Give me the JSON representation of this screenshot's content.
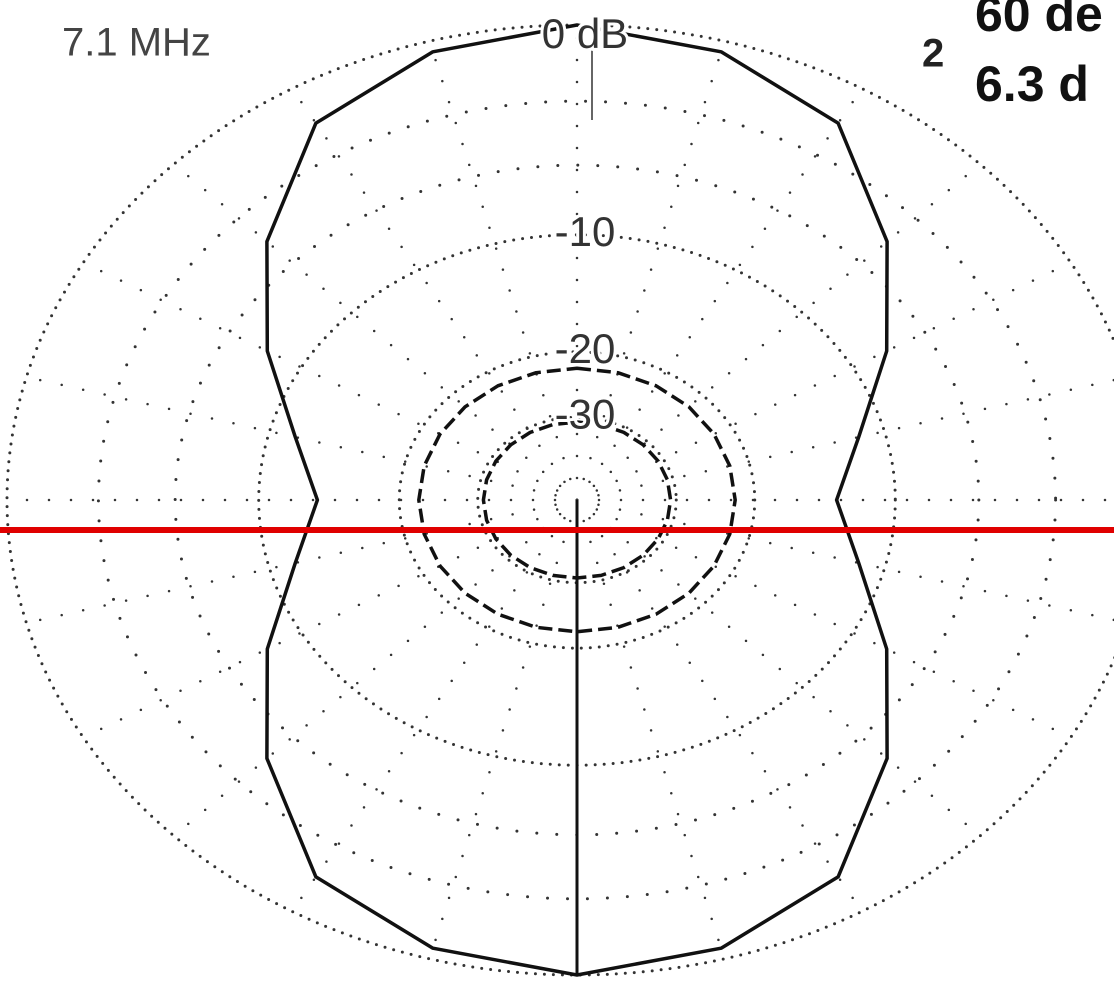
{
  "chart_data": {
    "type": "polar",
    "title": "7.1 MHz",
    "annotations": [
      "2",
      "60 de",
      "6.3 d"
    ],
    "scale": "arrl-log",
    "angles": [
      0,
      15,
      30,
      45,
      60,
      75,
      90,
      105,
      120,
      135,
      150,
      165,
      180,
      195,
      210,
      225,
      240,
      255,
      270,
      285,
      300,
      315,
      330,
      345
    ],
    "rlim": [
      -40,
      0
    ],
    "rticks": [
      {
        "value": 0,
        "label": "0 dB"
      },
      -10,
      -20,
      -30
    ],
    "minor_rticks": [
      -3,
      -6
    ],
    "radial_grid_step": 15,
    "series": [
      {
        "color": "#111111",
        "style": "solid",
        "values": [
          0,
          -0.4,
          -1.5,
          -4.5,
          -8,
          -11.5,
          -13.5,
          -11.5,
          -8,
          -4.5,
          -1.5,
          -0.4,
          0,
          -0.4,
          -1.5,
          -4.5,
          -8,
          -11.5,
          -13.5,
          -11.5,
          -8,
          -4.5,
          -1.5,
          -0.4
        ]
      },
      {
        "color": "#111111",
        "style": "dashed",
        "values": [
          -22,
          -22,
          -22,
          -22,
          -22,
          -22,
          -22,
          -22,
          -22,
          -22,
          -22,
          -22,
          -22,
          -22,
          -22,
          -22,
          -22,
          -22,
          -22,
          -22,
          -22,
          -22,
          -22,
          -22
        ]
      },
      {
        "color": "#111111",
        "style": "dashed",
        "values": [
          -31,
          -31,
          -31,
          -31,
          -31,
          -31,
          -31,
          -31,
          -31,
          -31,
          -31,
          -31,
          -31,
          -31,
          -31,
          -31,
          -31,
          -31,
          -31,
          -31,
          -31,
          -31,
          -31,
          -31
        ]
      }
    ],
    "grid": true
  }
}
